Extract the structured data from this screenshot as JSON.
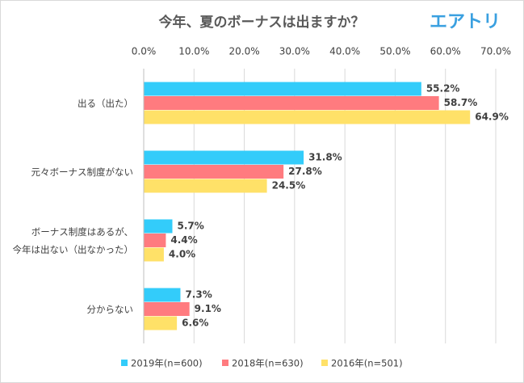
{
  "chart_data": {
    "type": "hbar",
    "title": "今年、夏のボーナスは出ますか？",
    "brand": "エアトリ",
    "categories": [
      "出る（出た）",
      "元々ボーナス制度がない",
      "ボーナス制度はあるが、\n今年は出ない（出なかった）",
      "分からない"
    ],
    "series": [
      {
        "name": "2019年(n=600)",
        "color": "#33ccfa",
        "values": [
          55.2,
          31.8,
          5.7,
          7.3
        ],
        "value_labels": [
          "55.2%",
          "31.8%",
          "5.7%",
          "7.3%"
        ]
      },
      {
        "name": "2018年(n=630)",
        "color": "#ff7b7f",
        "values": [
          58.7,
          27.8,
          4.4,
          9.1
        ],
        "value_labels": [
          "58.7%",
          "27.8%",
          "4.4%",
          "9.1%"
        ]
      },
      {
        "name": "2016年(n=501)",
        "color": "#ffe168",
        "values": [
          64.9,
          24.5,
          4.0,
          6.6
        ],
        "value_labels": [
          "64.9%",
          "24.5%",
          "4.0%",
          "6.6%"
        ]
      }
    ],
    "xlim": [
      0,
      70
    ],
    "xticks": [
      {
        "value": 0,
        "label": "0.0%"
      },
      {
        "value": 10,
        "label": "10.0%"
      },
      {
        "value": 20,
        "label": "20.0%"
      },
      {
        "value": 30,
        "label": "30.0%"
      },
      {
        "value": 40,
        "label": "40.0%"
      },
      {
        "value": 50,
        "label": "50.0%"
      },
      {
        "value": 60,
        "label": "60.0%"
      },
      {
        "value": 70,
        "label": "70.0%"
      }
    ],
    "grid": true
  }
}
